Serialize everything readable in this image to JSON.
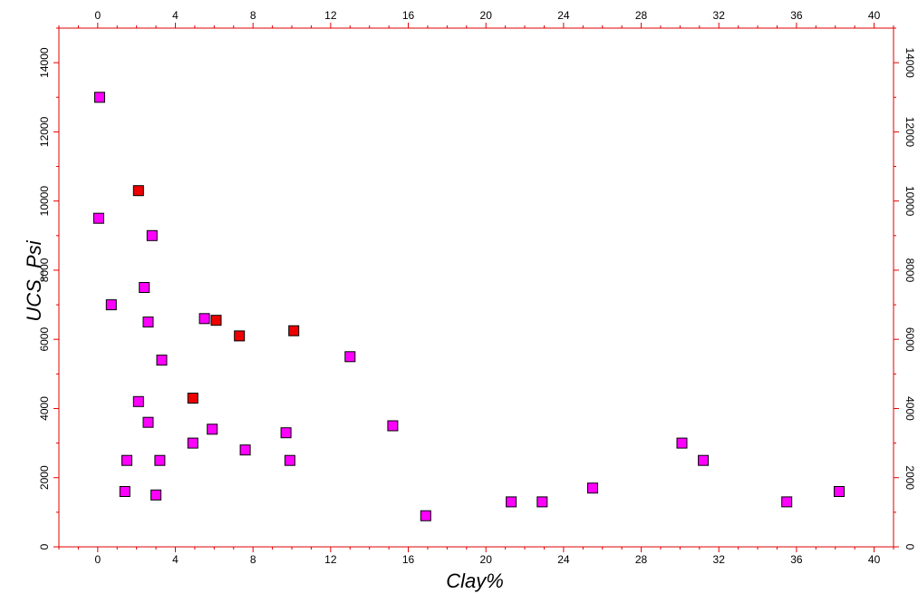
{
  "chart_data": {
    "type": "scatter",
    "title": "",
    "xlabel": "Clay%",
    "ylabel": "UCS_Psi",
    "xlim": [
      -2,
      41
    ],
    "ylim": [
      0,
      15000
    ],
    "x_ticks": [
      0,
      4,
      8,
      12,
      16,
      20,
      24,
      28,
      32,
      36,
      40
    ],
    "y_ticks": [
      0,
      2000,
      4000,
      6000,
      8000,
      10000,
      12000,
      14000
    ],
    "grid": false,
    "legend": "none",
    "axis_color": "#e00000",
    "series": [
      {
        "color": "#ff00ff",
        "x": [
          0.1,
          0.05,
          0.7,
          1.4,
          1.5,
          2.1,
          2.4,
          2.6,
          2.6,
          2.8,
          3.0,
          3.2,
          3.3,
          4.9,
          5.5,
          5.9,
          7.6,
          9.7,
          9.9,
          13.0,
          15.2,
          16.9,
          21.3,
          22.9,
          25.5,
          30.1,
          31.2,
          35.5,
          38.2
        ],
        "y": [
          13000,
          9500,
          7000,
          1600,
          2500,
          4200,
          7500,
          6500,
          3600,
          9000,
          1500,
          2500,
          5400,
          3000,
          6600,
          3400,
          2800,
          3300,
          2500,
          5500,
          3500,
          900,
          1300,
          1300,
          1700,
          3000,
          2500,
          1300,
          1600
        ]
      },
      {
        "color": "#ee0000",
        "x": [
          2.1,
          4.9,
          6.1,
          7.3,
          10.1
        ],
        "y": [
          10300,
          4300,
          6550,
          6100,
          6250
        ]
      }
    ]
  }
}
